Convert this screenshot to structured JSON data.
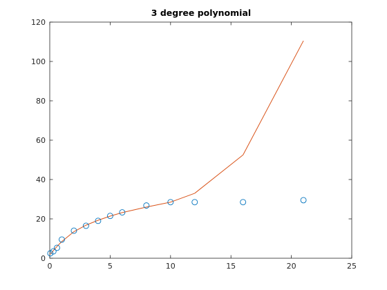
{
  "chart_data": {
    "type": "scatter",
    "title": "3 degree polynomial",
    "xlabel": "",
    "ylabel": "",
    "xlim": [
      0,
      25
    ],
    "ylim": [
      0,
      120
    ],
    "xticks": [
      0,
      5,
      10,
      15,
      20,
      25
    ],
    "yticks": [
      0,
      20,
      40,
      60,
      80,
      100,
      120
    ],
    "grid": false,
    "legend": "none",
    "series": [
      {
        "kind": "scatter-markers",
        "marker": "open-circle",
        "color": "#0072BD",
        "x": [
          0.05,
          0.3,
          0.6,
          1,
          2,
          3,
          4,
          5,
          6,
          8,
          10,
          12,
          16,
          21
        ],
        "y": [
          2.5,
          3.5,
          5.3,
          9.5,
          14,
          16.5,
          19,
          21.5,
          23.3,
          26.8,
          28.5,
          28.5,
          28.5,
          29.5
        ]
      },
      {
        "kind": "fit-line",
        "color": "#D95319",
        "x": [
          0.05,
          0.3,
          0.6,
          1,
          2,
          3,
          4,
          5,
          6,
          8,
          10,
          12,
          16,
          21
        ],
        "y": [
          2.0,
          3.9,
          6.0,
          8.5,
          13.5,
          16.8,
          19.3,
          21.4,
          23.2,
          26.0,
          28.5,
          33.0,
          52.5,
          110.5
        ]
      }
    ]
  }
}
